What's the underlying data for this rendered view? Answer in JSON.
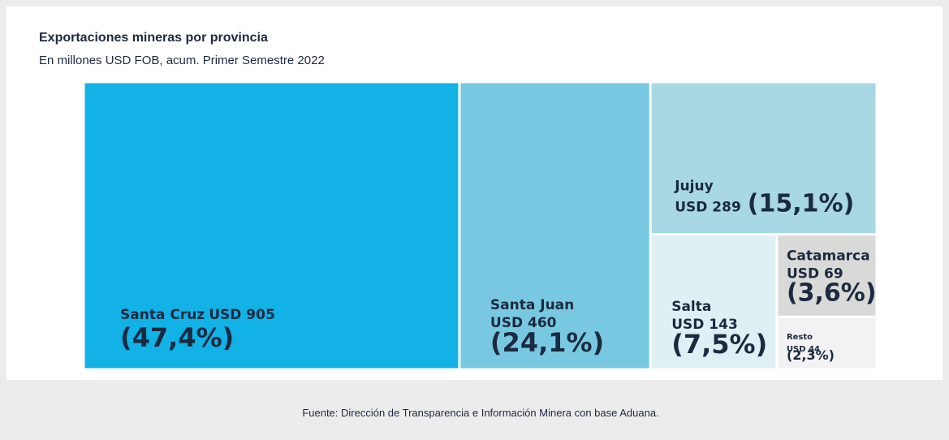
{
  "chart_data": {
    "type": "treemap",
    "title": "Exportaciones mineras por provincia",
    "subtitle": "En millones USD FOB, acum. Primer Semestre 2022",
    "categories": [
      "Santa Cruz",
      "Santa Juan",
      "Jujuy",
      "Salta",
      "Catamarca",
      "Resto"
    ],
    "values": [
      905,
      460,
      289,
      143,
      69,
      44
    ],
    "value_labels": [
      "USD 905",
      "USD 460",
      "USD 289",
      "USD 143",
      "USD 69",
      "USD 44"
    ],
    "shares": [
      47.4,
      24.1,
      15.1,
      7.5,
      3.6,
      2.3
    ],
    "share_labels": [
      "(47,4%)",
      "(24,1%)",
      "(15,1%)",
      "(7,5%)",
      "(3,6%)",
      "(2,3%)"
    ],
    "colors": [
      "#12b1e6",
      "#77c8e0",
      "#a7d8e4",
      "#dff0f4",
      "#d9d9d7",
      "#f2f2f2"
    ],
    "source": "Fuente: Dirección de Transparencia e Información Minera con base Aduana."
  }
}
